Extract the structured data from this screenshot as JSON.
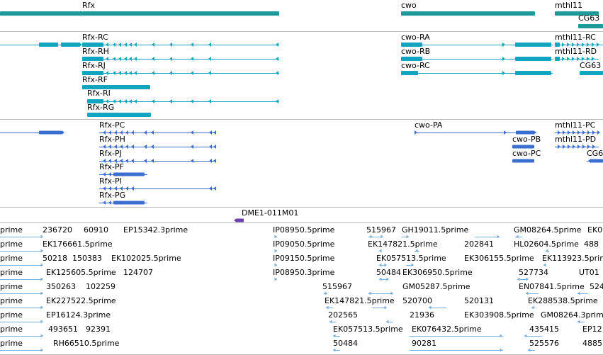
{
  "colors": {
    "gene_span": "#1e9a9a",
    "transcript": "#12a5c2",
    "protein": "#3a6fd0",
    "oligo": "#6a3fb0",
    "est": "#79aee0",
    "separator": "#b9b9b9",
    "background": "#ffffff"
  },
  "gene_track": {
    "genes": [
      {
        "id": "rfx",
        "label": "Rfx"
      },
      {
        "id": "cwo",
        "label": "cwo"
      },
      {
        "id": "mthl11",
        "label": "mthl11"
      },
      {
        "id": "cg63",
        "label": "CG63"
      }
    ]
  },
  "transcript_track": {
    "transcripts": [
      {
        "id": "rfx-rc",
        "label": "Rfx-RC"
      },
      {
        "id": "rfx-rh",
        "label": "Rfx-RH"
      },
      {
        "id": "rfx-rj",
        "label": "Rfx-RJ"
      },
      {
        "id": "rfx-rf",
        "label": "Rfx-RF"
      },
      {
        "id": "rfx-ri",
        "label": "Rfx-RI"
      },
      {
        "id": "rfx-rg",
        "label": "Rfx-RG"
      },
      {
        "id": "cwo-ra",
        "label": "cwo-RA"
      },
      {
        "id": "cwo-rb",
        "label": "cwo-RB"
      },
      {
        "id": "cwo-rc",
        "label": "cwo-RC"
      },
      {
        "id": "mthl11-rc",
        "label": "mthl11-RC"
      },
      {
        "id": "mthl11-rd",
        "label": "mthl11-RD"
      },
      {
        "id": "cg63-r",
        "label": "CG63"
      }
    ]
  },
  "protein_track": {
    "proteins": [
      {
        "id": "rfx-pc",
        "label": "Rfx-PC"
      },
      {
        "id": "rfx-ph",
        "label": "Rfx-PH"
      },
      {
        "id": "rfx-pj",
        "label": "Rfx-PJ"
      },
      {
        "id": "rfx-pf",
        "label": "Rfx-PF"
      },
      {
        "id": "rfx-pi",
        "label": "Rfx-PI"
      },
      {
        "id": "rfx-pg",
        "label": "Rfx-PG"
      },
      {
        "id": "cwo-pa",
        "label": "cwo-PA"
      },
      {
        "id": "cwo-pb",
        "label": "cwo-PB"
      },
      {
        "id": "cwo-pc",
        "label": "cwo-PC"
      },
      {
        "id": "mthl11-pc",
        "label": "mthl11-PC"
      },
      {
        "id": "mthl11-pd",
        "label": "mthl11-PD"
      },
      {
        "id": "cg6-p",
        "label": "CG6"
      }
    ]
  },
  "oligo_track": {
    "label": "DME1-011M01"
  },
  "est_track": {
    "rows": [
      [
        "prime",
        "236720",
        "60910",
        "EP15342.3prime",
        "IP08950.5prime",
        "515967",
        "GH19011.5prime",
        "GM08264.5prime",
        "EK0"
      ],
      [
        "prime",
        "EK176661.5prime",
        "IP09050.5prime",
        "EK147821.5prime",
        "202841",
        "HL02604.5prime",
        "488"
      ],
      [
        "prime",
        "50218",
        "150383",
        "EK102025.5prime",
        "IP09150.5prime",
        "EK057513.5prime",
        "EK306155.5prime",
        "EK113923.5prime"
      ],
      [
        "prime",
        "EK125605.5prime",
        "124707",
        "IP08950.3prime",
        "50484",
        "EK306950.5prime",
        "527734",
        "UT01"
      ],
      [
        "prime",
        "350263",
        "102259",
        "515967",
        "GM05287.5prime",
        "EN07841.5prime",
        "524"
      ],
      [
        "prime",
        "EK227522.5prime",
        "EK147821.5prime",
        "520700",
        "520131",
        "EK288538.5prime"
      ],
      [
        "prime",
        "EP16124.3prime",
        "202565",
        "21936",
        "EK303908.5prime",
        "GM08264.3prime"
      ],
      [
        "prime",
        "493651",
        "92391",
        "EK057513.5prime",
        "EK076432.5prime",
        "435415",
        "EP12"
      ],
      [
        "prime",
        "RH66510.5prime",
        "50484",
        "90281",
        "525576",
        "4885"
      ]
    ]
  }
}
